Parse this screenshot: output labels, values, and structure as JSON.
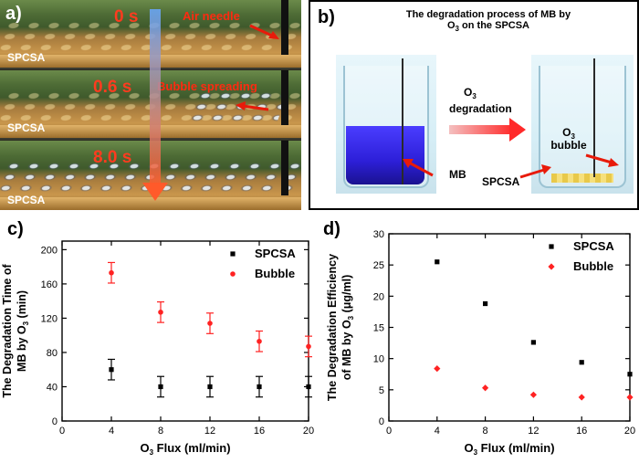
{
  "panel_a": {
    "label": "a)",
    "frames": [
      {
        "time": "0 s",
        "annotation": "Air needle",
        "substrate": "SPCSA"
      },
      {
        "time": "0.6 s",
        "annotation": "Bubble spreading",
        "substrate": "SPCSA"
      },
      {
        "time": "8.0 s",
        "annotation": "",
        "substrate": "SPCSA"
      }
    ]
  },
  "panel_b": {
    "label": "b)",
    "title_line1": "The degradation process of MB by",
    "title_line2_pre": "O",
    "title_line2_sub": "3",
    "title_line2_post": " on the SPCSA",
    "arrow_top_pre": "O",
    "arrow_top_sub": "3",
    "arrow_bottom": "degradation",
    "label_mb": "MB",
    "label_spcsa": "SPCSA",
    "label_o3_pre": "O",
    "label_o3_sub": "3",
    "label_bubble": "bubble"
  },
  "colors": {
    "accent_red": "#ff2a10",
    "series_black": "#000000",
    "series_red": "#ff2222"
  },
  "chart_data": [
    {
      "id": "c",
      "panel_label": "c)",
      "type": "scatter",
      "xlabel_pre": "O",
      "xlabel_sub": "3",
      "xlabel_post": " Flux (ml/min)",
      "ylabel_line1": "The Degradation Time of",
      "ylabel_line2_pre": "MB by O",
      "ylabel_line2_sub": "3",
      "ylabel_line2_post": " (min)",
      "xlim": [
        0,
        20
      ],
      "ylim": [
        0,
        210
      ],
      "xticks": [
        0,
        4,
        8,
        12,
        16,
        20
      ],
      "yticks": [
        0,
        40,
        80,
        120,
        160,
        200
      ],
      "series": [
        {
          "name": "SPCSA",
          "color": "#000000",
          "marker": "square",
          "x": [
            4,
            8,
            12,
            16,
            20
          ],
          "y": [
            60,
            40,
            40,
            40,
            40
          ],
          "err": [
            12,
            12,
            12,
            12,
            12
          ]
        },
        {
          "name": "Bubble",
          "color": "#ff2222",
          "marker": "circle",
          "x": [
            4,
            8,
            12,
            16,
            20
          ],
          "y": [
            173,
            127,
            114,
            93,
            87
          ],
          "err": [
            12,
            12,
            12,
            12,
            12
          ]
        }
      ]
    },
    {
      "id": "d",
      "panel_label": "d)",
      "type": "scatter",
      "xlabel_pre": "O",
      "xlabel_sub": "3",
      "xlabel_post": " Flux (ml/min)",
      "ylabel_line1": "The Degradation Efficiency",
      "ylabel_line2_pre": "of MB by O",
      "ylabel_line2_sub": "3",
      "ylabel_line2_post": " (μg/ml)",
      "xlim": [
        0,
        20
      ],
      "ylim": [
        0,
        30
      ],
      "xticks": [
        0,
        4,
        8,
        12,
        16,
        20
      ],
      "yticks": [
        0,
        5,
        10,
        15,
        20,
        25,
        30
      ],
      "series": [
        {
          "name": "SPCSA",
          "color": "#000000",
          "marker": "square",
          "x": [
            4,
            8,
            12,
            16,
            20
          ],
          "y": [
            25.5,
            18.8,
            12.6,
            9.4,
            7.5
          ]
        },
        {
          "name": "Bubble",
          "color": "#ff2222",
          "marker": "diamond",
          "x": [
            4,
            8,
            12,
            16,
            20
          ],
          "y": [
            8.4,
            5.3,
            4.2,
            3.8,
            3.8
          ]
        }
      ]
    }
  ]
}
